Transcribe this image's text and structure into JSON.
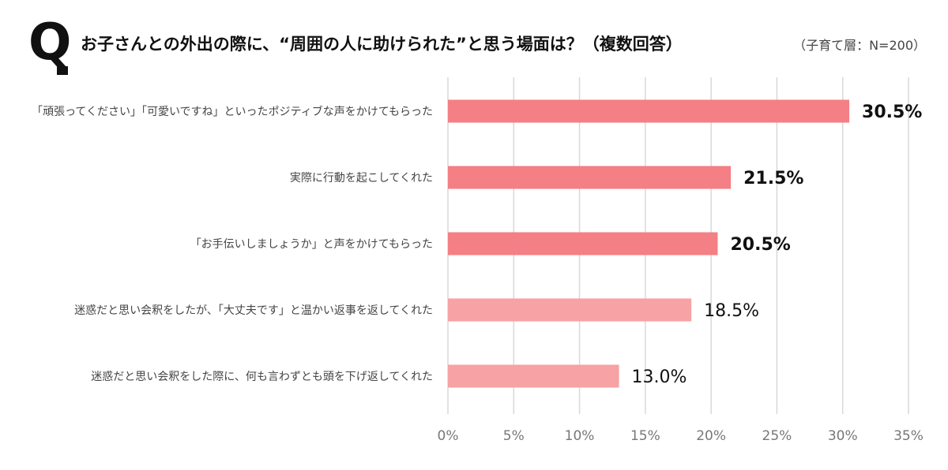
{
  "header": {
    "q_mark": "Q",
    "title": "お子さんとの外出の際に、“周囲の人に助けられた”と思う場面は？（複数回答）",
    "sample": "（子育て層：N=200）"
  },
  "chart_data": {
    "type": "bar",
    "orientation": "horizontal",
    "categories": [
      "「頑張ってください」「可愛いですね」といったポジティブな声をかけてもらった",
      "実際に行動を起こしてくれた",
      "「お手伝いしましょうか」と声をかけてもらった",
      "迷惑だと思い会釈をしたが、「大丈夫です」と温かい返事を返してくれた",
      "迷惑だと思い会釈をした際に、何も言わずとも頭を下げ返してくれた"
    ],
    "values": [
      30.5,
      21.5,
      20.5,
      18.5,
      13.0
    ],
    "value_labels": [
      "30.5%",
      "21.5%",
      "20.5%",
      "18.5%",
      "13.0%"
    ],
    "bar_colors": [
      "#f47f84",
      "#f47f84",
      "#f47f84",
      "#f7a2a4",
      "#f7a2a4"
    ],
    "xlim": [
      0,
      35
    ],
    "xticks": [
      0,
      5,
      10,
      15,
      20,
      25,
      30,
      35
    ],
    "xtick_labels": [
      "0%",
      "5%",
      "10%",
      "15%",
      "20%",
      "25%",
      "30%",
      "35%"
    ],
    "grid": "vertical"
  }
}
